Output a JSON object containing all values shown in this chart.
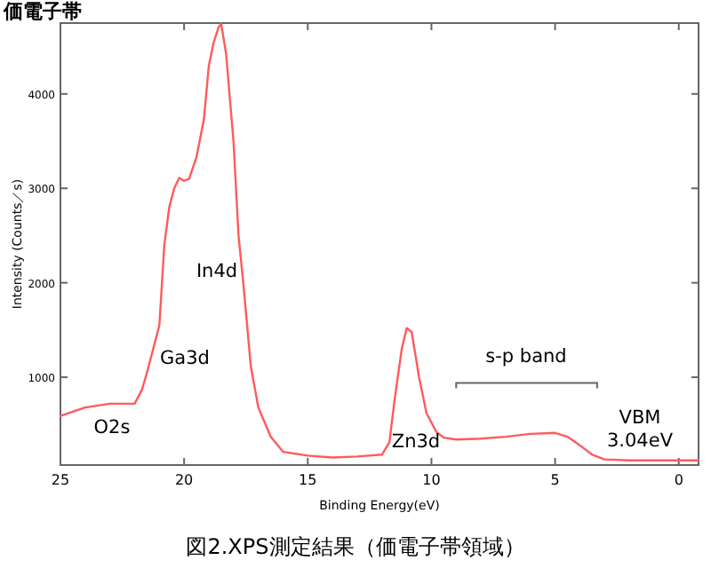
{
  "chart_data": {
    "type": "line",
    "title": "価電子帯",
    "xlabel": "Binding Energy(eV)",
    "ylabel": "Intensity (Counts／s)",
    "xlim": [
      25,
      -0.8
    ],
    "ylim": [
      70,
      4750
    ],
    "xticks": [
      25,
      20,
      15,
      10,
      5,
      0
    ],
    "yticks": [
      1000,
      2000,
      3000,
      4000
    ],
    "series": [
      {
        "color": "#ff5a5a",
        "x": [
          25,
          24,
          23,
          22.5,
          22,
          21.7,
          21.5,
          21,
          20.8,
          20.6,
          20.4,
          20.2,
          20,
          19.8,
          19.5,
          19.2,
          19,
          18.8,
          18.6,
          18.5,
          18.3,
          18,
          17.8,
          17.6,
          17.3,
          17,
          16.5,
          16,
          15,
          14,
          13,
          12,
          11.7,
          11.5,
          11.2,
          11,
          10.8,
          10.5,
          10.2,
          9.8,
          9.5,
          9,
          8,
          7,
          6,
          5,
          4.5,
          4,
          3.5,
          3,
          2,
          0,
          -0.8
        ],
        "values": [
          590,
          680,
          720,
          720,
          720,
          870,
          1050,
          1550,
          2400,
          2800,
          3000,
          3110,
          3080,
          3100,
          3330,
          3730,
          4300,
          4550,
          4710,
          4740,
          4420,
          3490,
          2500,
          1980,
          1110,
          680,
          370,
          210,
          170,
          150,
          160,
          180,
          310,
          740,
          1300,
          1520,
          1480,
          1000,
          620,
          420,
          360,
          340,
          350,
          370,
          400,
          410,
          370,
          280,
          180,
          130,
          120,
          120,
          120
        ]
      }
    ],
    "annotations": [
      "O2s",
      "Ga3d",
      "In4d",
      "Zn3d",
      "s-p band",
      "VBM\n3.04eV",
      "図2.XPS測定結果（価電子帯領域）"
    ]
  }
}
